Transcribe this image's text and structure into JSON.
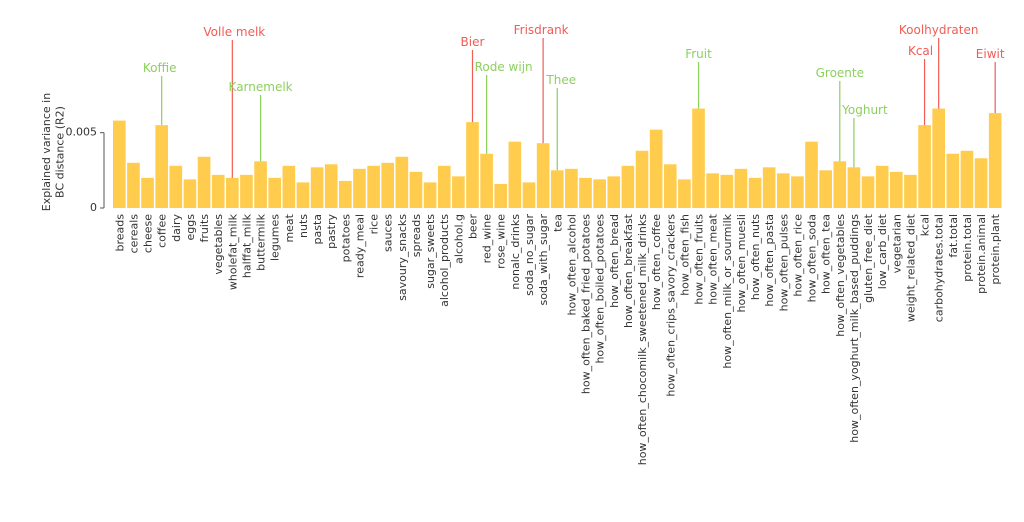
{
  "colors": {
    "bar": "#FFCC4D",
    "axis": "#555555",
    "good": "#8CD05E",
    "bad": "#F25C54"
  },
  "chart_data": {
    "type": "bar",
    "ylabel": "Explained variance in BC distance (R2)",
    "ylim": [
      0,
      0.0075
    ],
    "yticks": [
      0,
      0.005
    ],
    "ytick_labels": [
      "0",
      "0.005"
    ],
    "grid": false,
    "categories": [
      "breads",
      "cereals",
      "cheese",
      "coffee",
      "dairy",
      "eggs",
      "fruits",
      "vegetables",
      "wholefat_milk",
      "halffat_milk",
      "buttermilk",
      "legumes",
      "meat",
      "nuts",
      "pasta",
      "pastry",
      "potatoes",
      "ready_meal",
      "rice",
      "sauces",
      "savoury_snacks",
      "spreads",
      "sugar_sweets",
      "alcohol_products",
      "alcohol.g",
      "beer",
      "red_wine",
      "rose_wine",
      "nonalc_drinks",
      "soda_no_sugar",
      "soda_with_sugar",
      "tea",
      "how_often_alcohol",
      "how_often_baked_fried_potatoes",
      "how_often_boiled_potatoes",
      "how_often_bread",
      "how_often_breakfast",
      "how_often_chocomilk_sweetened_milk_drinks",
      "how_often_coffee",
      "how_often_crips_savory_crackers",
      "how_often_fish",
      "how_often_fruits",
      "how_often_meat",
      "how_often_milk_or_sourmilk",
      "how_often_muesli",
      "how_often_nuts",
      "how_often_pasta",
      "how_often_pulses",
      "how_often_rice",
      "how_often_soda",
      "how_often_tea",
      "how_often_vegetables",
      "how_often_yoghurt_milk_based_puddings",
      "gluten_free_diet",
      "low_carb_diet",
      "vegetarian",
      "weight_related_diet",
      "kcal",
      "carbohydrates.total",
      "fat.total",
      "protein.total",
      "protein.animal",
      "protein.plant"
    ],
    "values": [
      0.0058,
      0.003,
      0.002,
      0.0055,
      0.0028,
      0.0019,
      0.0034,
      0.0022,
      0.002,
      0.0022,
      0.0031,
      0.002,
      0.0028,
      0.0017,
      0.0027,
      0.0029,
      0.0018,
      0.0026,
      0.0028,
      0.003,
      0.0034,
      0.0024,
      0.0017,
      0.0028,
      0.0021,
      0.0057,
      0.0036,
      0.0016,
      0.0044,
      0.0017,
      0.0043,
      0.0025,
      0.0026,
      0.002,
      0.0019,
      0.0021,
      0.0028,
      0.0038,
      0.0052,
      0.0029,
      0.0019,
      0.0066,
      0.0023,
      0.0022,
      0.0026,
      0.002,
      0.0027,
      0.0023,
      0.0021,
      0.0044,
      0.0025,
      0.0031,
      0.0027,
      0.0021,
      0.0028,
      0.0024,
      0.0022,
      0.0055,
      0.0066,
      0.0036,
      0.0038,
      0.0033,
      0.0063
    ],
    "annotations": [
      {
        "label": "Koffie",
        "category": "coffee",
        "kind": "good"
      },
      {
        "label": "Volle melk",
        "category": "wholefat_milk",
        "kind": "bad"
      },
      {
        "label": "Karnemelk",
        "category": "buttermilk",
        "kind": "good"
      },
      {
        "label": "Bier",
        "category": "beer",
        "kind": "bad"
      },
      {
        "label": "Rode wijn",
        "category": "red_wine",
        "kind": "good"
      },
      {
        "label": "Frisdrank",
        "category": "soda_with_sugar",
        "kind": "bad"
      },
      {
        "label": "Thee",
        "category": "tea",
        "kind": "good"
      },
      {
        "label": "Fruit",
        "category": "how_often_fruits",
        "kind": "good"
      },
      {
        "label": "Groente",
        "category": "how_often_vegetables",
        "kind": "good"
      },
      {
        "label": "Yoghurt",
        "category": "how_often_yoghurt_milk_based_puddings",
        "kind": "good"
      },
      {
        "label": "Kcal",
        "category": "kcal",
        "kind": "bad"
      },
      {
        "label": "Koolhydraten",
        "category": "carbohydrates.total",
        "kind": "bad"
      },
      {
        "label": "Eiwit",
        "category": "protein.plant",
        "kind": "bad"
      }
    ]
  }
}
